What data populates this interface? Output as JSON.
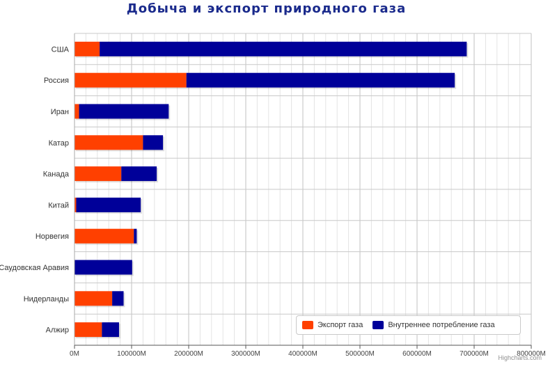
{
  "chart_data": {
    "type": "bar",
    "orientation": "horizontal",
    "stacked": true,
    "title": "Добыча и экспорт природного газа",
    "categories": [
      "США",
      "Россия",
      "Иран",
      "Катар",
      "Канада",
      "Китай",
      "Норвегия",
      "Саудовская Аравия",
      "Нидерланды",
      "Алжир"
    ],
    "series": [
      {
        "name": "Экспорт газа",
        "color": "#ff4000",
        "values": [
          44000,
          196000,
          8000,
          120000,
          82000,
          3000,
          104000,
          0,
          66000,
          48000
        ]
      },
      {
        "name": "Внутреннее потребление газа",
        "color": "#000099",
        "values": [
          643000,
          470000,
          157000,
          35000,
          62000,
          113000,
          5000,
          101000,
          20000,
          30000
        ]
      }
    ],
    "xlim": [
      0,
      800000
    ],
    "x_ticks": [
      "0M",
      "100000M",
      "200000M",
      "300000M",
      "400000M",
      "500000M",
      "600000M",
      "700000M",
      "800000M"
    ],
    "grid": true,
    "legend_position": "bottom-right",
    "credits": "Highcharts.com"
  }
}
